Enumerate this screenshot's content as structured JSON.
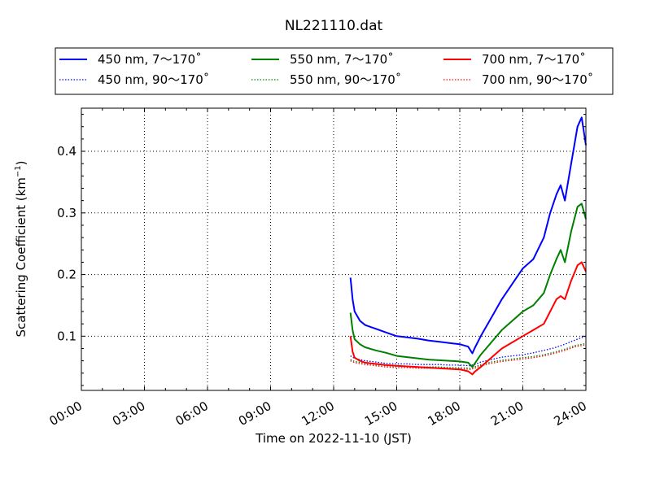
{
  "chart_data": {
    "type": "line",
    "title": "NL221110.dat",
    "xlabel": "Time on 2022-11-10 (JST)",
    "ylabel_main": "Scattering Coefficient (km",
    "ylabel_sup": "−1",
    "ylabel_end": ")",
    "xlim_hours": [
      0,
      24
    ],
    "ylim": [
      0.012,
      0.47
    ],
    "x_ticks": [
      {
        "hour": 0,
        "label": "00:00"
      },
      {
        "hour": 3,
        "label": "03:00"
      },
      {
        "hour": 6,
        "label": "06:00"
      },
      {
        "hour": 9,
        "label": "09:00"
      },
      {
        "hour": 12,
        "label": "12:00"
      },
      {
        "hour": 15,
        "label": "15:00"
      },
      {
        "hour": 18,
        "label": "18:00"
      },
      {
        "hour": 21,
        "label": "21:00"
      },
      {
        "hour": 24,
        "label": "24:00"
      }
    ],
    "y_ticks": [
      {
        "value": 0.1,
        "label": "0.1"
      },
      {
        "value": 0.2,
        "label": "0.2"
      },
      {
        "value": 0.3,
        "label": "0.3"
      },
      {
        "value": 0.4,
        "label": "0.4"
      }
    ],
    "grid": true,
    "legend_position": "top",
    "series": [
      {
        "name": "450 nm, 7～170˚",
        "color": "#0000ff",
        "style": "solid",
        "points": [
          [
            12.8,
            0.195
          ],
          [
            12.9,
            0.16
          ],
          [
            13.0,
            0.14
          ],
          [
            13.25,
            0.125
          ],
          [
            13.5,
            0.118
          ],
          [
            14.0,
            0.112
          ],
          [
            14.5,
            0.106
          ],
          [
            15.0,
            0.1
          ],
          [
            15.5,
            0.098
          ],
          [
            16.0,
            0.096
          ],
          [
            16.5,
            0.093
          ],
          [
            17.0,
            0.091
          ],
          [
            17.5,
            0.089
          ],
          [
            18.0,
            0.087
          ],
          [
            18.4,
            0.083
          ],
          [
            18.6,
            0.072
          ],
          [
            18.7,
            0.08
          ],
          [
            19.0,
            0.1
          ],
          [
            19.5,
            0.13
          ],
          [
            20.0,
            0.16
          ],
          [
            20.5,
            0.185
          ],
          [
            21.0,
            0.21
          ],
          [
            21.5,
            0.225
          ],
          [
            22.0,
            0.26
          ],
          [
            22.3,
            0.3
          ],
          [
            22.6,
            0.33
          ],
          [
            22.8,
            0.345
          ],
          [
            23.0,
            0.32
          ],
          [
            23.3,
            0.38
          ],
          [
            23.6,
            0.44
          ],
          [
            23.8,
            0.455
          ],
          [
            24.0,
            0.41
          ]
        ]
      },
      {
        "name": "550 nm, 7～170˚",
        "color": "#008000",
        "style": "solid",
        "points": [
          [
            12.8,
            0.138
          ],
          [
            12.9,
            0.11
          ],
          [
            13.0,
            0.095
          ],
          [
            13.25,
            0.087
          ],
          [
            13.5,
            0.082
          ],
          [
            14.0,
            0.077
          ],
          [
            14.5,
            0.073
          ],
          [
            15.0,
            0.068
          ],
          [
            15.5,
            0.066
          ],
          [
            16.0,
            0.064
          ],
          [
            16.5,
            0.062
          ],
          [
            17.0,
            0.061
          ],
          [
            17.5,
            0.06
          ],
          [
            18.0,
            0.059
          ],
          [
            18.4,
            0.057
          ],
          [
            18.6,
            0.05
          ],
          [
            18.7,
            0.055
          ],
          [
            19.0,
            0.07
          ],
          [
            19.5,
            0.09
          ],
          [
            20.0,
            0.11
          ],
          [
            20.5,
            0.125
          ],
          [
            21.0,
            0.14
          ],
          [
            21.5,
            0.15
          ],
          [
            22.0,
            0.17
          ],
          [
            22.3,
            0.2
          ],
          [
            22.6,
            0.225
          ],
          [
            22.8,
            0.24
          ],
          [
            23.0,
            0.22
          ],
          [
            23.3,
            0.27
          ],
          [
            23.6,
            0.31
          ],
          [
            23.8,
            0.315
          ],
          [
            24.0,
            0.29
          ]
        ]
      },
      {
        "name": "700 nm, 7～170˚",
        "color": "#ff0000",
        "style": "solid",
        "points": [
          [
            12.8,
            0.1
          ],
          [
            12.9,
            0.075
          ],
          [
            13.0,
            0.065
          ],
          [
            13.25,
            0.06
          ],
          [
            13.5,
            0.057
          ],
          [
            14.0,
            0.055
          ],
          [
            14.5,
            0.053
          ],
          [
            15.0,
            0.052
          ],
          [
            15.5,
            0.051
          ],
          [
            16.0,
            0.05
          ],
          [
            16.5,
            0.049
          ],
          [
            17.0,
            0.048
          ],
          [
            17.5,
            0.047
          ],
          [
            18.0,
            0.046
          ],
          [
            18.4,
            0.043
          ],
          [
            18.6,
            0.038
          ],
          [
            18.7,
            0.042
          ],
          [
            19.0,
            0.05
          ],
          [
            19.5,
            0.065
          ],
          [
            20.0,
            0.08
          ],
          [
            20.5,
            0.09
          ],
          [
            21.0,
            0.1
          ],
          [
            21.5,
            0.11
          ],
          [
            22.0,
            0.12
          ],
          [
            22.3,
            0.14
          ],
          [
            22.6,
            0.16
          ],
          [
            22.8,
            0.165
          ],
          [
            23.0,
            0.16
          ],
          [
            23.3,
            0.19
          ],
          [
            23.6,
            0.215
          ],
          [
            23.8,
            0.22
          ],
          [
            24.0,
            0.205
          ]
        ]
      },
      {
        "name": "450 nm, 90～170˚",
        "color": "#0000ff",
        "style": "dotted",
        "points": [
          [
            12.8,
            0.068
          ],
          [
            13.0,
            0.064
          ],
          [
            13.5,
            0.06
          ],
          [
            14.0,
            0.058
          ],
          [
            14.5,
            0.056
          ],
          [
            15.0,
            0.055
          ],
          [
            15.5,
            0.055
          ],
          [
            16.0,
            0.054
          ],
          [
            16.5,
            0.054
          ],
          [
            17.0,
            0.054
          ],
          [
            17.5,
            0.053
          ],
          [
            18.0,
            0.053
          ],
          [
            18.5,
            0.052
          ],
          [
            18.7,
            0.054
          ],
          [
            19.0,
            0.058
          ],
          [
            19.5,
            0.062
          ],
          [
            20.0,
            0.066
          ],
          [
            20.5,
            0.068
          ],
          [
            21.0,
            0.07
          ],
          [
            21.5,
            0.073
          ],
          [
            22.0,
            0.077
          ],
          [
            22.5,
            0.081
          ],
          [
            23.0,
            0.087
          ],
          [
            23.5,
            0.094
          ],
          [
            24.0,
            0.1
          ]
        ]
      },
      {
        "name": "550 nm, 90～170˚",
        "color": "#008000",
        "style": "dotted",
        "points": [
          [
            12.8,
            0.062
          ],
          [
            13.0,
            0.059
          ],
          [
            13.5,
            0.056
          ],
          [
            14.0,
            0.054
          ],
          [
            14.5,
            0.052
          ],
          [
            15.0,
            0.051
          ],
          [
            15.5,
            0.051
          ],
          [
            16.0,
            0.05
          ],
          [
            16.5,
            0.05
          ],
          [
            17.0,
            0.05
          ],
          [
            17.5,
            0.049
          ],
          [
            18.0,
            0.049
          ],
          [
            18.5,
            0.048
          ],
          [
            18.7,
            0.05
          ],
          [
            19.0,
            0.054
          ],
          [
            19.5,
            0.058
          ],
          [
            20.0,
            0.061
          ],
          [
            20.5,
            0.063
          ],
          [
            21.0,
            0.065
          ],
          [
            21.5,
            0.067
          ],
          [
            22.0,
            0.07
          ],
          [
            22.5,
            0.074
          ],
          [
            23.0,
            0.079
          ],
          [
            23.5,
            0.085
          ],
          [
            24.0,
            0.088
          ]
        ]
      },
      {
        "name": "700 nm, 90～170˚",
        "color": "#ff0000",
        "style": "dotted",
        "points": [
          [
            12.8,
            0.06
          ],
          [
            13.0,
            0.057
          ],
          [
            13.5,
            0.054
          ],
          [
            14.0,
            0.052
          ],
          [
            14.5,
            0.05
          ],
          [
            15.0,
            0.049
          ],
          [
            15.5,
            0.049
          ],
          [
            16.0,
            0.048
          ],
          [
            16.5,
            0.048
          ],
          [
            17.0,
            0.048
          ],
          [
            17.5,
            0.047
          ],
          [
            18.0,
            0.047
          ],
          [
            18.5,
            0.046
          ],
          [
            18.7,
            0.048
          ],
          [
            19.0,
            0.052
          ],
          [
            19.5,
            0.056
          ],
          [
            20.0,
            0.059
          ],
          [
            20.5,
            0.061
          ],
          [
            21.0,
            0.063
          ],
          [
            21.5,
            0.065
          ],
          [
            22.0,
            0.068
          ],
          [
            22.5,
            0.072
          ],
          [
            23.0,
            0.077
          ],
          [
            23.5,
            0.083
          ],
          [
            24.0,
            0.086
          ]
        ]
      }
    ]
  }
}
